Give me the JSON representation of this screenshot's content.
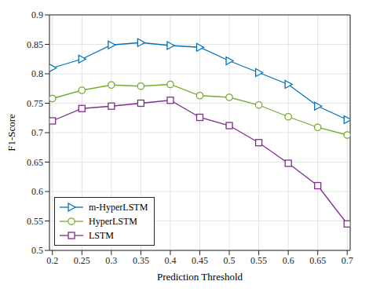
{
  "chart_data": {
    "type": "line",
    "x_label": "Prediction Threshold",
    "y_label": "F1-Score",
    "x": [
      0.2,
      0.25,
      0.3,
      0.35,
      0.4,
      0.45,
      0.5,
      0.55,
      0.6,
      0.65,
      0.7
    ],
    "series": [
      {
        "name": "m-HyperLSTM",
        "color": "#0072BD",
        "marker": "triangle-right",
        "values": [
          0.81,
          0.825,
          0.849,
          0.853,
          0.848,
          0.845,
          0.822,
          0.802,
          0.782,
          0.745,
          0.722
        ]
      },
      {
        "name": "HyperLSTM",
        "color": "#77AC30",
        "marker": "circle",
        "values": [
          0.758,
          0.772,
          0.781,
          0.779,
          0.782,
          0.763,
          0.76,
          0.747,
          0.727,
          0.709,
          0.696
        ]
      },
      {
        "name": "LSTM",
        "color": "#7E2F8E",
        "marker": "square",
        "values": [
          0.72,
          0.741,
          0.745,
          0.75,
          0.755,
          0.726,
          0.712,
          0.683,
          0.648,
          0.61,
          0.545
        ]
      }
    ],
    "xlim": [
      0.195,
      0.705
    ],
    "xticks": [
      0.2,
      0.25,
      0.3,
      0.35,
      0.4,
      0.45,
      0.5,
      0.55,
      0.6,
      0.65,
      0.7
    ],
    "ylim": [
      0.5,
      0.9
    ],
    "yticks": [
      0.5,
      0.55,
      0.6,
      0.65,
      0.7,
      0.75,
      0.8,
      0.85,
      0.9
    ],
    "grid": true,
    "legend": "lower left"
  }
}
